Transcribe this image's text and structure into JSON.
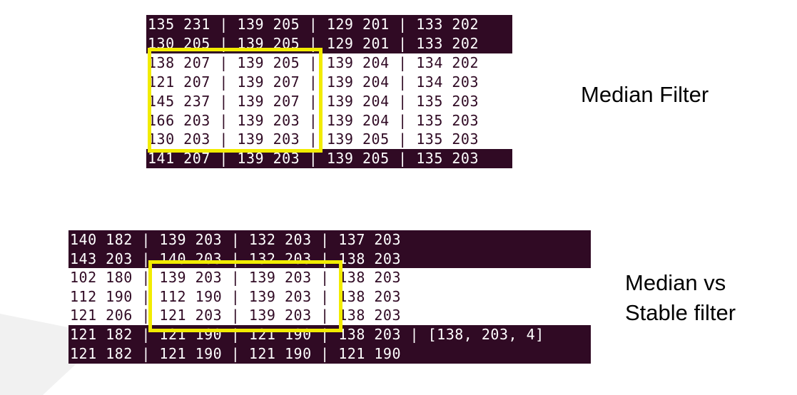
{
  "caption_top": "Median Filter",
  "caption_bottom_line1": "Median vs",
  "caption_bottom_line2": "Stable filter",
  "colors": {
    "terminal_bg": "#300a24",
    "highlight": "#f2ec00",
    "text_light": "#ffffff"
  },
  "top_terminal": {
    "rows": [
      {
        "style": "dark",
        "text": "135 231 | 139 205 | 129 201 | 133 202"
      },
      {
        "style": "dark",
        "text": "130 205 | 139 205 | 129 201 | 133 202"
      },
      {
        "style": "light",
        "text": "138 207 | 139 205 | 139 204 | 134 202"
      },
      {
        "style": "light",
        "text": "121 207 | 139 207 | 139 204 | 134 203"
      },
      {
        "style": "light",
        "text": "145 237 | 139 207 | 139 204 | 135 203"
      },
      {
        "style": "light",
        "text": "166 203 | 139 203 | 139 204 | 135 203"
      },
      {
        "style": "light",
        "text": "130 203 | 139 203 | 139 205 | 135 203"
      },
      {
        "style": "dark",
        "text": "141 207 | 139 203 | 139 205 | 135 203"
      }
    ]
  },
  "bottom_terminal": {
    "rows": [
      {
        "style": "dark",
        "text": "140 182 | 139 203 | 132 203 | 137 203"
      },
      {
        "style": "dark",
        "text": "143 203 | 140 203 | 132 203 | 138 203"
      },
      {
        "style": "light",
        "text": "102 180 | 139 203 | 139 203 | 138 203"
      },
      {
        "style": "light",
        "text": "112 190 | 112 190 | 139 203 | 138 203"
      },
      {
        "style": "light",
        "text": "121 206 | 121 203 | 139 203 | 138 203"
      },
      {
        "style": "dark",
        "text": "121 182 | 121 190 | 121 190 | 138 203 | [138, 203, 4]"
      },
      {
        "style": "dark",
        "text": "121 182 | 121 190 | 121 190 | 121 190"
      }
    ]
  }
}
